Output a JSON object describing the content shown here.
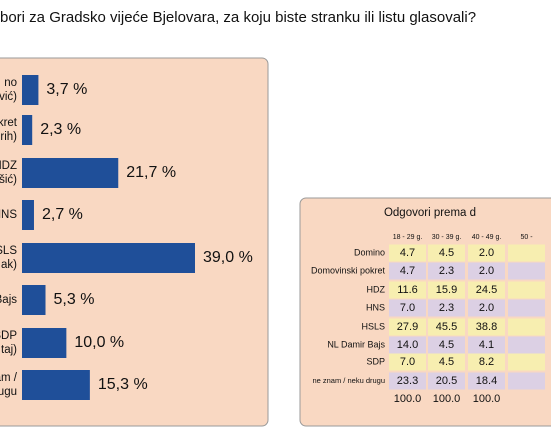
{
  "chart_data": {
    "type": "bar",
    "title": "bori za Gradsko vijeće Bjelovara, za koju biste stranku ili listu glasovali?",
    "categories": [
      [
        "no",
        "vić)"
      ],
      [
        "kret",
        "rih)"
      ],
      [
        "HDZ",
        "šić)"
      ],
      [
        "HNS"
      ],
      [
        "HSLS",
        "ak)"
      ],
      [
        "Bajs"
      ],
      [
        "SDP",
        "taj)"
      ],
      [
        "znam /",
        "rugu"
      ]
    ],
    "values": [
      3.7,
      2.3,
      21.7,
      2.7,
      39.0,
      5.3,
      10.0,
      15.3
    ],
    "value_labels": [
      "3,7 %",
      "2,3 %",
      "21,7 %",
      "2,7 %",
      "39,0 %",
      "5,3 %",
      "10,0 %",
      "15,3 %"
    ],
    "color": "#1f4f99"
  },
  "table": {
    "title": "Odgovori prema d",
    "columns": [
      "18 - 29 g.",
      "30 - 39 g.",
      "40 - 49 g.",
      "50 -"
    ],
    "rows": [
      [
        "Domino",
        "4.7",
        "4.5",
        "2.0"
      ],
      [
        "Domovinski pokret",
        "4.7",
        "2.3",
        "2.0"
      ],
      [
        "HDZ",
        "11.6",
        "15.9",
        "24.5"
      ],
      [
        "HNS",
        "7.0",
        "2.3",
        "2.0"
      ],
      [
        "HSLS",
        "27.9",
        "45.5",
        "38.8"
      ],
      [
        "NL Damir Bajs",
        "14.0",
        "4.5",
        "4.1"
      ],
      [
        "SDP",
        "7.0",
        "4.5",
        "8.2"
      ],
      [
        "ne znam / neku drugu",
        "23.3",
        "20.5",
        "18.4"
      ]
    ],
    "totals": [
      "100.0",
      "100.0",
      "100.0"
    ]
  }
}
